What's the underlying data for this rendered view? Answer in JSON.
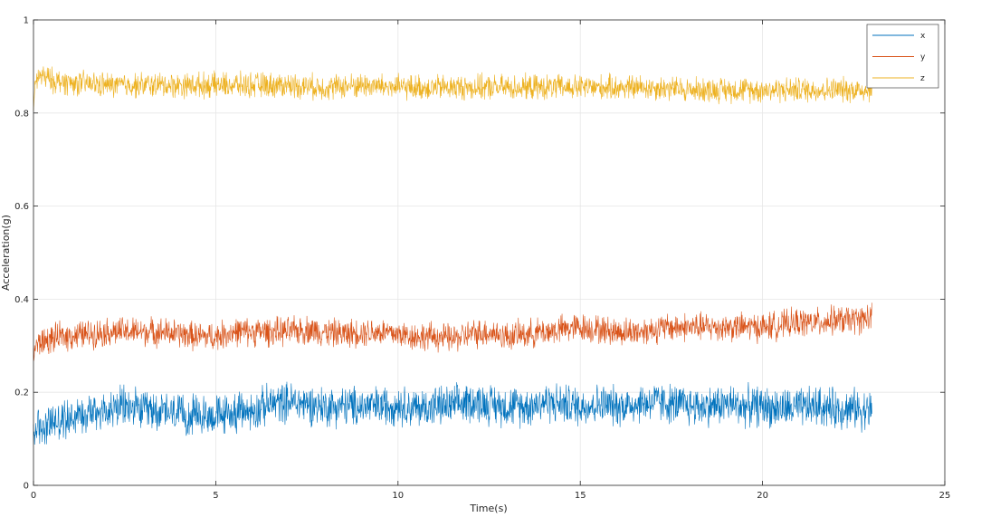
{
  "chart_data": {
    "type": "line",
    "title": "",
    "xlabel": "Time(s)",
    "ylabel": "Acceleration(g)",
    "xlim": [
      0,
      25
    ],
    "ylim": [
      0,
      1
    ],
    "xticks": [
      0,
      5,
      10,
      15,
      20,
      25
    ],
    "yticks": [
      0,
      0.2,
      0.4,
      0.6,
      0.8,
      1
    ],
    "xtick_labels": [
      "0",
      "5",
      "10",
      "15",
      "20",
      "25"
    ],
    "ytick_labels": [
      "0",
      "0.2",
      "0.4",
      "0.6",
      "0.8",
      "1"
    ],
    "grid": true,
    "legend_position": "top-right",
    "series": [
      {
        "name": "x",
        "color": "#0072BD",
        "noise_amplitude": 0.035,
        "x": [
          0,
          0.05,
          0.3,
          0.8,
          1.5,
          2.0,
          2.5,
          3.0,
          3.5,
          4.0,
          4.5,
          5.0,
          5.5,
          6.0,
          6.5,
          7.0,
          7.5,
          8.0,
          8.5,
          9.0,
          9.5,
          10.0,
          10.5,
          11.0,
          11.5,
          12.0,
          12.5,
          13.0,
          13.5,
          14.0,
          14.5,
          15.0,
          15.5,
          16.0,
          16.5,
          17.0,
          17.5,
          18.0,
          18.5,
          19.0,
          19.5,
          20.0,
          20.5,
          21.0,
          21.5,
          22.0,
          22.5,
          23.0
        ],
        "y": [
          0.1,
          0.12,
          0.13,
          0.14,
          0.16,
          0.16,
          0.17,
          0.16,
          0.16,
          0.15,
          0.15,
          0.15,
          0.155,
          0.16,
          0.175,
          0.18,
          0.175,
          0.17,
          0.17,
          0.17,
          0.17,
          0.175,
          0.165,
          0.17,
          0.17,
          0.18,
          0.175,
          0.17,
          0.17,
          0.18,
          0.175,
          0.17,
          0.175,
          0.17,
          0.175,
          0.18,
          0.175,
          0.17,
          0.17,
          0.175,
          0.17,
          0.17,
          0.165,
          0.165,
          0.17,
          0.165,
          0.165,
          0.16
        ]
      },
      {
        "name": "y",
        "color": "#D95319",
        "noise_amplitude": 0.025,
        "x": [
          0,
          0.05,
          0.3,
          0.8,
          1.5,
          2.0,
          2.5,
          3.0,
          3.5,
          4.0,
          4.5,
          5.0,
          5.5,
          6.0,
          6.5,
          7.0,
          7.5,
          8.0,
          8.5,
          9.0,
          9.5,
          10.0,
          10.5,
          11.0,
          11.5,
          12.0,
          12.5,
          13.0,
          13.5,
          14.0,
          14.5,
          15.0,
          15.5,
          16.0,
          16.5,
          17.0,
          17.5,
          18.0,
          18.5,
          19.0,
          19.5,
          20.0,
          20.5,
          21.0,
          21.5,
          22.0,
          22.5,
          23.0
        ],
        "y": [
          0.28,
          0.3,
          0.31,
          0.32,
          0.325,
          0.33,
          0.33,
          0.33,
          0.33,
          0.325,
          0.32,
          0.32,
          0.33,
          0.33,
          0.33,
          0.33,
          0.335,
          0.33,
          0.325,
          0.33,
          0.33,
          0.325,
          0.32,
          0.32,
          0.315,
          0.325,
          0.33,
          0.32,
          0.325,
          0.33,
          0.335,
          0.34,
          0.335,
          0.33,
          0.33,
          0.335,
          0.34,
          0.34,
          0.34,
          0.34,
          0.34,
          0.34,
          0.345,
          0.35,
          0.35,
          0.355,
          0.355,
          0.36
        ]
      },
      {
        "name": "z",
        "color": "#EDB120",
        "noise_amplitude": 0.022,
        "x": [
          0,
          0.05,
          0.2,
          0.5,
          1.0,
          2.0,
          3.0,
          4.0,
          5.0,
          6.0,
          7.0,
          8.0,
          9.0,
          10.0,
          11.0,
          12.0,
          13.0,
          14.0,
          15.0,
          16.0,
          17.0,
          18.0,
          19.0,
          20.0,
          21.0,
          22.0,
          23.0
        ],
        "y": [
          0.8,
          0.87,
          0.88,
          0.87,
          0.865,
          0.86,
          0.86,
          0.86,
          0.86,
          0.86,
          0.86,
          0.855,
          0.86,
          0.855,
          0.855,
          0.855,
          0.855,
          0.855,
          0.855,
          0.855,
          0.855,
          0.85,
          0.85,
          0.85,
          0.85,
          0.85,
          0.85
        ]
      }
    ]
  }
}
